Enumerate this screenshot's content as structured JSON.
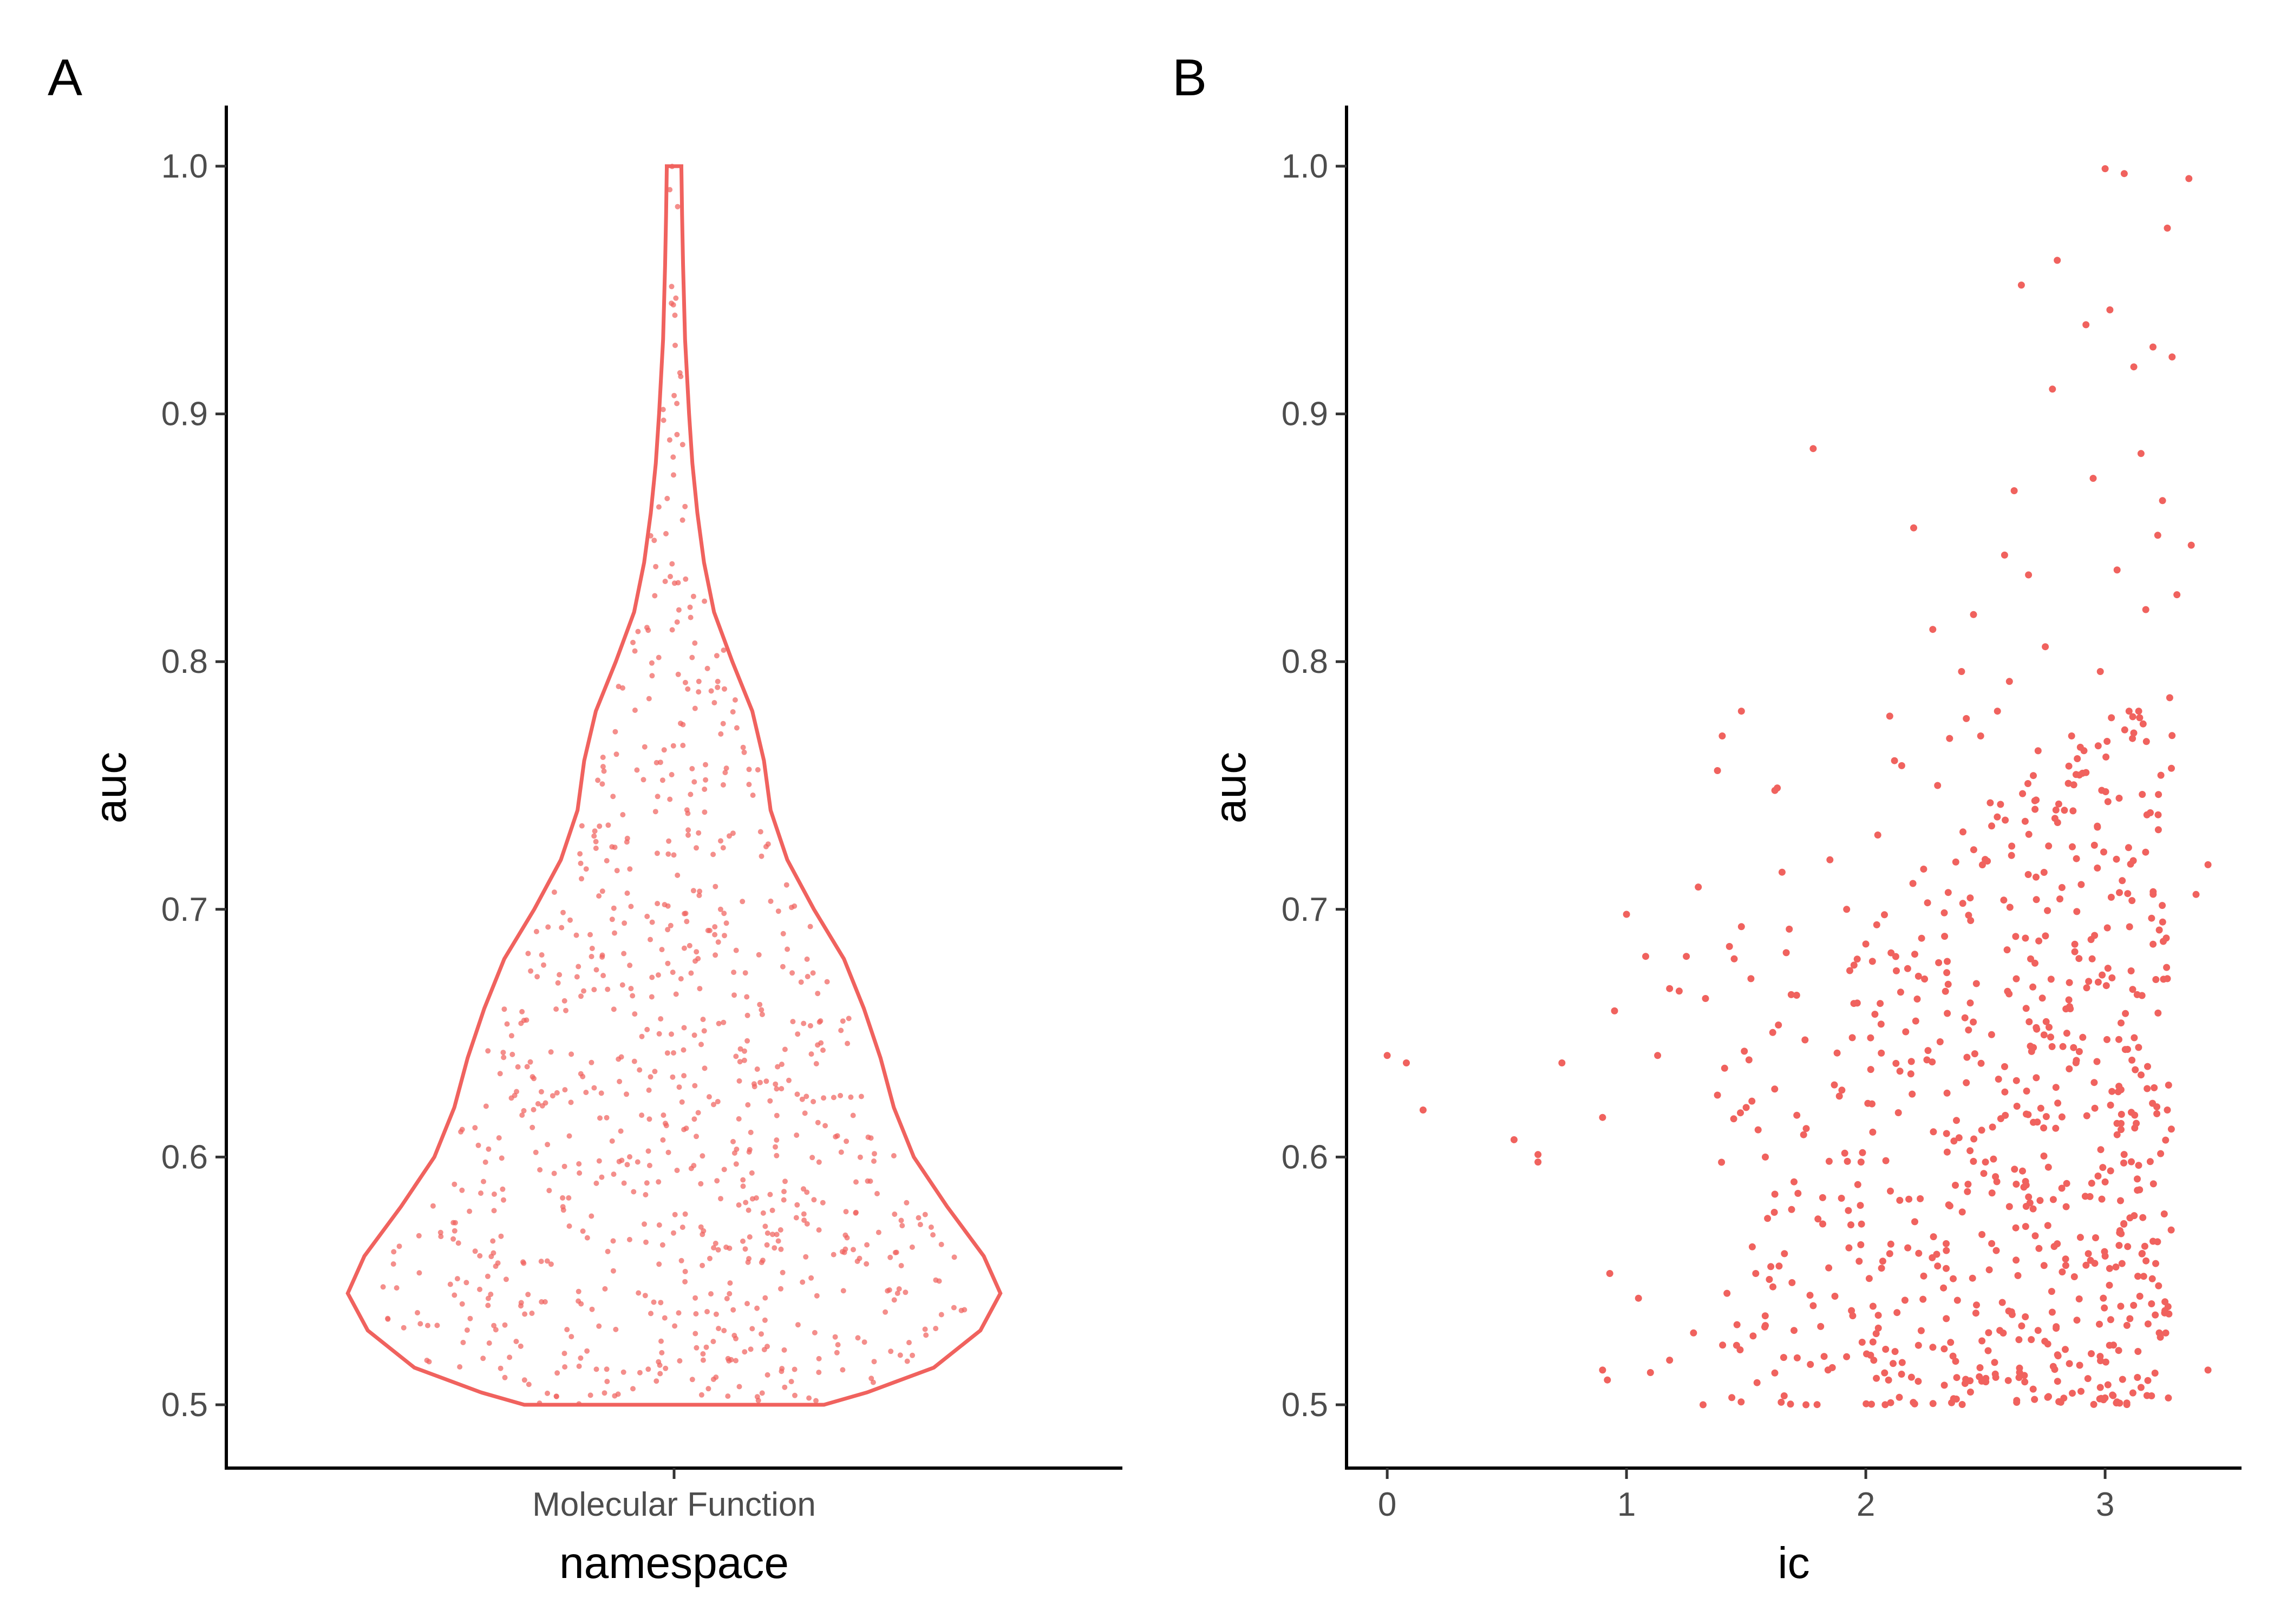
{
  "chart_data": [
    {
      "panel": "A",
      "type": "violin",
      "xlabel": "namespace",
      "ylabel": "auc",
      "categories": [
        "Molecular Function"
      ],
      "ylim": [
        0.5,
        1.0
      ],
      "yticks": [
        "0.5",
        "0.6",
        "0.7",
        "0.8",
        "0.9",
        "1.0"
      ],
      "color": "#F0625E",
      "density_profile": [
        {
          "y": 0.5,
          "width": 0.45
        },
        {
          "y": 0.505,
          "width": 0.58
        },
        {
          "y": 0.515,
          "width": 0.78
        },
        {
          "y": 0.53,
          "width": 0.92
        },
        {
          "y": 0.545,
          "width": 0.98
        },
        {
          "y": 0.56,
          "width": 0.93
        },
        {
          "y": 0.58,
          "width": 0.82
        },
        {
          "y": 0.6,
          "width": 0.72
        },
        {
          "y": 0.62,
          "width": 0.66
        },
        {
          "y": 0.64,
          "width": 0.62
        },
        {
          "y": 0.66,
          "width": 0.57
        },
        {
          "y": 0.68,
          "width": 0.51
        },
        {
          "y": 0.7,
          "width": 0.42
        },
        {
          "y": 0.72,
          "width": 0.34
        },
        {
          "y": 0.74,
          "width": 0.29
        },
        {
          "y": 0.76,
          "width": 0.27
        },
        {
          "y": 0.78,
          "width": 0.235
        },
        {
          "y": 0.8,
          "width": 0.175
        },
        {
          "y": 0.82,
          "width": 0.12
        },
        {
          "y": 0.84,
          "width": 0.09
        },
        {
          "y": 0.86,
          "width": 0.07
        },
        {
          "y": 0.88,
          "width": 0.055
        },
        {
          "y": 0.9,
          "width": 0.045
        },
        {
          "y": 0.93,
          "width": 0.033
        },
        {
          "y": 0.96,
          "width": 0.027
        },
        {
          "y": 0.98,
          "width": 0.024
        },
        {
          "y": 0.999,
          "width": 0.022
        },
        {
          "y": 1.0,
          "width": 0.022
        }
      ],
      "n_points": 800
    },
    {
      "panel": "B",
      "type": "scatter",
      "xlabel": "ic",
      "ylabel": "auc",
      "xlim": [
        -0.17,
        3.57
      ],
      "ylim": [
        0.5,
        1.0
      ],
      "xticks": [
        "0",
        "1",
        "2",
        "3"
      ],
      "yticks": [
        "0.5",
        "0.6",
        "0.7",
        "0.8",
        "0.9",
        "1.0"
      ],
      "color": "#F0625E",
      "points": [
        [
          0.0,
          0.641
        ],
        [
          0.08,
          0.638
        ],
        [
          0.15,
          0.619
        ],
        [
          0.53,
          0.607
        ],
        [
          0.63,
          0.601
        ],
        [
          0.63,
          0.598
        ],
        [
          0.73,
          0.638
        ],
        [
          0.9,
          0.616
        ],
        [
          0.9,
          0.514
        ],
        [
          0.92,
          0.51
        ],
        [
          0.93,
          0.553
        ],
        [
          0.95,
          0.659
        ],
        [
          1.0,
          0.698
        ],
        [
          1.05,
          0.543
        ],
        [
          1.08,
          0.681
        ],
        [
          1.1,
          0.513
        ],
        [
          1.13,
          0.641
        ],
        [
          1.18,
          0.668
        ],
        [
          1.18,
          0.518
        ],
        [
          1.22,
          0.667
        ],
        [
          1.25,
          0.681
        ],
        [
          1.28,
          0.529
        ],
        [
          1.3,
          0.709
        ],
        [
          1.32,
          0.5
        ],
        [
          1.33,
          0.664
        ],
        [
          1.38,
          0.756
        ],
        [
          1.4,
          0.77
        ],
        [
          1.43,
          0.685
        ],
        [
          1.45,
          0.68
        ],
        [
          1.48,
          0.78
        ],
        [
          1.48,
          0.693
        ],
        [
          1.52,
          0.672
        ],
        [
          1.55,
          0.611
        ],
        [
          1.58,
          0.532
        ],
        [
          1.62,
          0.748
        ],
        [
          1.63,
          0.749
        ],
        [
          1.65,
          0.715
        ],
        [
          1.68,
          0.692
        ],
        [
          1.7,
          0.59
        ],
        [
          1.75,
          0.5
        ],
        [
          1.78,
          0.886
        ],
        [
          1.8,
          0.575
        ],
        [
          1.85,
          0.72
        ],
        [
          1.88,
          0.642
        ],
        [
          1.92,
          0.7
        ],
        [
          1.95,
          0.662
        ],
        [
          2.0,
          0.686
        ],
        [
          2.05,
          0.73
        ],
        [
          2.1,
          0.778
        ],
        [
          2.12,
          0.76
        ],
        [
          2.15,
          0.758
        ],
        [
          2.2,
          0.854
        ],
        [
          2.22,
          0.673
        ],
        [
          2.28,
          0.813
        ],
        [
          2.3,
          0.75
        ],
        [
          2.35,
          0.769
        ],
        [
          2.4,
          0.796
        ],
        [
          2.42,
          0.777
        ],
        [
          2.45,
          0.819
        ],
        [
          2.48,
          0.77
        ],
        [
          2.52,
          0.743
        ],
        [
          2.55,
          0.78
        ],
        [
          2.58,
          0.843
        ],
        [
          2.6,
          0.792
        ],
        [
          2.62,
          0.869
        ],
        [
          2.65,
          0.952
        ],
        [
          2.68,
          0.835
        ],
        [
          2.7,
          0.754
        ],
        [
          2.72,
          0.764
        ],
        [
          2.75,
          0.806
        ],
        [
          2.78,
          0.91
        ],
        [
          2.8,
          0.962
        ],
        [
          2.83,
          0.74
        ],
        [
          2.86,
          0.77
        ],
        [
          2.9,
          0.71
        ],
        [
          2.92,
          0.936
        ],
        [
          2.95,
          0.874
        ],
        [
          2.98,
          0.796
        ],
        [
          3.0,
          0.999
        ],
        [
          3.02,
          0.942
        ],
        [
          3.05,
          0.837
        ],
        [
          3.08,
          0.997
        ],
        [
          3.1,
          0.78
        ],
        [
          3.12,
          0.919
        ],
        [
          3.15,
          0.884
        ],
        [
          3.17,
          0.821
        ],
        [
          3.2,
          0.927
        ],
        [
          3.22,
          0.851
        ],
        [
          3.24,
          0.865
        ],
        [
          3.26,
          0.975
        ],
        [
          3.28,
          0.923
        ],
        [
          3.3,
          0.827
        ],
        [
          3.35,
          0.995
        ],
        [
          3.36,
          0.847
        ],
        [
          3.38,
          0.706
        ],
        [
          3.43,
          0.718
        ],
        [
          3.43,
          0.514
        ],
        [
          3.26,
          0.672
        ],
        [
          3.26,
          0.619
        ],
        [
          3.25,
          0.538
        ],
        [
          3.2,
          0.566
        ],
        [
          3.15,
          0.507
        ],
        [
          3.05,
          0.609
        ],
        [
          3.0,
          0.56
        ],
        [
          2.98,
          0.507
        ],
        [
          2.93,
          0.561
        ],
        [
          2.88,
          0.639
        ],
        [
          2.84,
          0.65
        ],
        [
          2.8,
          0.565
        ],
        [
          2.76,
          0.503
        ],
        [
          2.72,
          0.53
        ],
        [
          2.7,
          0.614
        ],
        [
          2.67,
          0.66
        ],
        [
          2.64,
          0.511
        ],
        [
          2.6,
          0.58
        ],
        [
          2.56,
          0.53
        ],
        [
          2.5,
          0.598
        ],
        [
          2.46,
          0.537
        ],
        [
          2.42,
          0.63
        ],
        [
          2.38,
          0.511
        ],
        [
          2.34,
          0.602
        ],
        [
          2.3,
          0.556
        ],
        [
          2.26,
          0.643
        ],
        [
          2.22,
          0.524
        ],
        [
          2.18,
          0.583
        ],
        [
          2.14,
          0.503
        ],
        [
          2.1,
          0.561
        ],
        [
          2.06,
          0.662
        ],
        [
          2.02,
          0.52
        ],
        [
          1.98,
          0.598
        ],
        [
          1.94,
          0.538
        ],
        [
          1.9,
          0.627
        ],
        [
          1.86,
          0.515
        ],
        [
          1.82,
          0.573
        ],
        [
          1.78,
          0.54
        ],
        [
          1.74,
          0.609
        ],
        [
          1.7,
          0.53
        ],
        [
          1.66,
          0.561
        ],
        [
          1.62,
          0.585
        ],
        [
          1.58,
          0.6
        ],
        [
          1.54,
          0.553
        ],
        [
          1.5,
          0.62
        ],
        [
          1.46,
          0.524
        ],
        [
          1.42,
          0.545
        ],
        [
          1.38,
          0.625
        ]
      ],
      "n_points": 760
    }
  ]
}
